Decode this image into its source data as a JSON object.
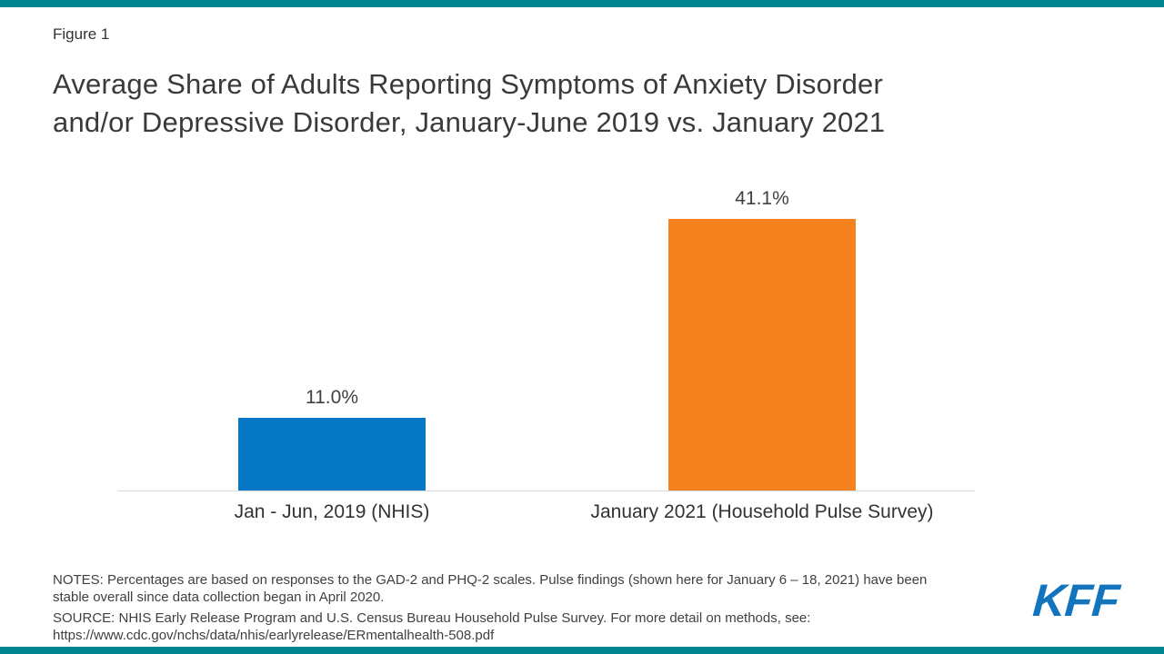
{
  "page": {
    "figure_label": "Figure 1",
    "title_line1": "Average Share of Adults Reporting Symptoms of Anxiety Disorder",
    "title_line2": "and/or Depressive Disorder, January-June 2019 vs. January 2021"
  },
  "chart_data": {
    "type": "bar",
    "title": "Average Share of Adults Reporting Symptoms of Anxiety Disorder and/or Depressive Disorder, January-June 2019 vs. January 2021",
    "categories": [
      "Jan - Jun, 2019 (NHIS)",
      "January 2021 (Household Pulse Survey)"
    ],
    "values": [
      11.0,
      41.1
    ],
    "value_labels": [
      "11.0%",
      "41.1%"
    ],
    "colors": [
      "#0778c6",
      "#f5821f"
    ],
    "xlabel": "",
    "ylabel": "",
    "ylim": [
      0,
      45
    ],
    "grid": false,
    "legend": false,
    "baseline_color": "#d8d8d8"
  },
  "footer": {
    "notes_line1": "NOTES: Percentages are based on responses to the GAD-2 and PHQ-2 scales. Pulse findings (shown here for January 6 – 18, 2021) have been",
    "notes_line2": "stable overall since data collection began in April 2020.",
    "source_line1": "SOURCE: NHIS Early Release Program and U.S. Census Bureau Household Pulse Survey. For more detail on methods, see:",
    "source_line2": "https://www.cdc.gov/nchs/data/nhis/earlyrelease/ERmentalhealth-508.pdf",
    "logo_text": "KFF"
  },
  "theme": {
    "accent_teal": "#00848e",
    "logo_blue": "#1274bc",
    "bar_blue": "#0778c6",
    "bar_orange": "#f5821f",
    "text_dark": "#3a3a3a",
    "text_gray": "#404040"
  }
}
